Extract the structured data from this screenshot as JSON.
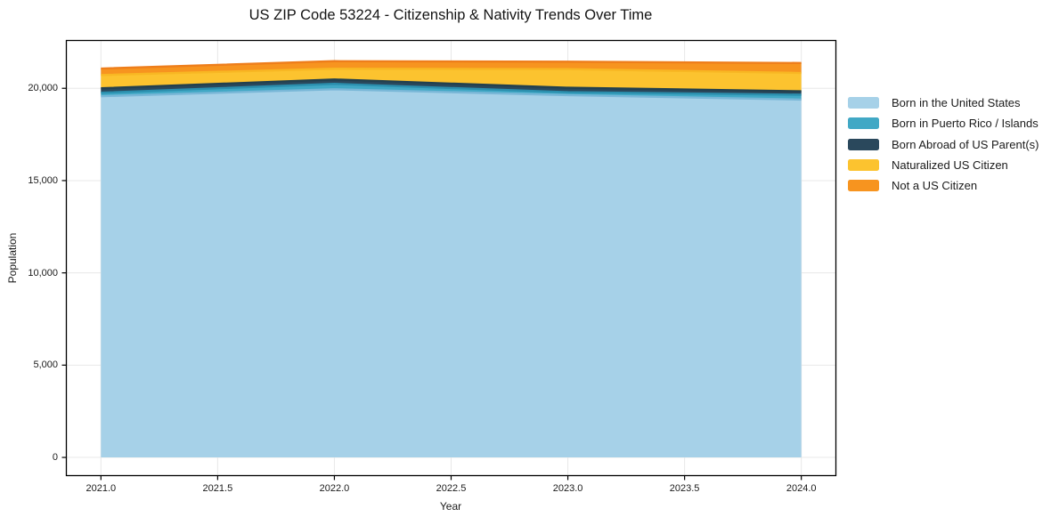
{
  "title": "US ZIP Code 53224 - Citizenship & Nativity Trends Over Time",
  "chart_data": {
    "type": "area",
    "stacked": true,
    "title": "US ZIP Code 53224 - Citizenship & Nativity Trends Over Time",
    "xlabel": "Year",
    "ylabel": "Population",
    "x": [
      2021,
      2022,
      2023,
      2024
    ],
    "series": [
      {
        "name": "Born in the United States",
        "values": [
          19570,
          19950,
          19630,
          19390
        ],
        "color": "#a6d1e8",
        "edge": "#79b7d7"
      },
      {
        "name": "Born in Puerto Rico / Islands",
        "values": [
          190,
          290,
          160,
          260
        ],
        "color": "#41a8c5",
        "edge": "#2b8fae"
      },
      {
        "name": "Born Abroad of US Parent(s)",
        "values": [
          240,
          240,
          240,
          190
        ],
        "color": "#2a485c",
        "edge": "#22404f"
      },
      {
        "name": "Naturalized US Citizen",
        "values": [
          720,
          580,
          1010,
          990
        ],
        "color": "#fcc32f",
        "edge": "#f8b723"
      },
      {
        "name": "Not a US Citizen",
        "values": [
          350,
          410,
          400,
          540
        ],
        "color": "#f7941f",
        "edge": "#ee7e1b"
      }
    ],
    "xticks": {
      "values": [
        2021,
        2021.5,
        2022,
        2022.5,
        2023,
        2023.5,
        2024
      ],
      "labels": [
        "2021.0",
        "2021.5",
        "2022.0",
        "2022.5",
        "2023.0",
        "2023.5",
        "2024.0"
      ]
    },
    "yticks": {
      "values": [
        0,
        5000,
        10000,
        15000,
        20000
      ],
      "labels": [
        "0",
        "5,000",
        "10,000",
        "15,000",
        "20,000"
      ]
    },
    "xlim": [
      2020.85,
      2024.15
    ],
    "ylim": [
      -1010,
      22615
    ],
    "grid": true,
    "legend_position": "right"
  },
  "colors": {
    "grid": "#e8e8e8",
    "spine": "#000000",
    "text": "#1a1a1a",
    "background": "#ffffff"
  }
}
